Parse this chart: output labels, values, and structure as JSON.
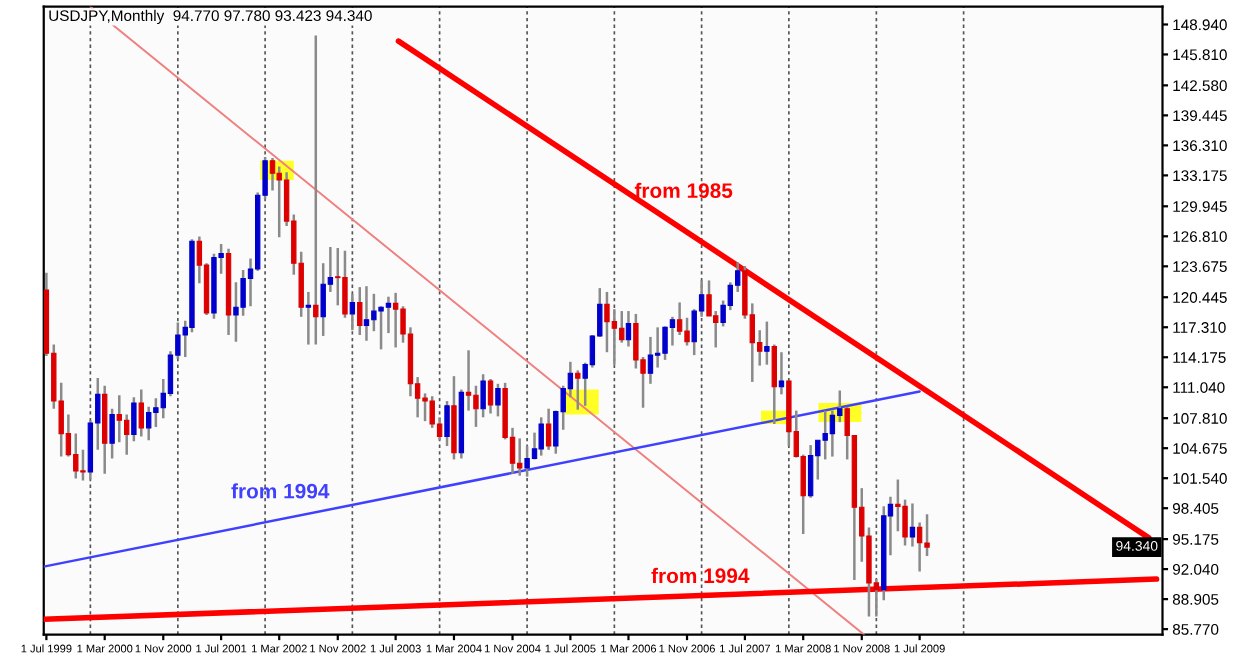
{
  "chart_data": {
    "type": "candlestick",
    "title": "USDJPY,Monthly  94.770 97.780 93.423 94.340",
    "x": [
      "1999-07",
      "1999-08",
      "1999-09",
      "1999-10",
      "1999-11",
      "1999-12",
      "2000-01",
      "2000-02",
      "2000-03",
      "2000-04",
      "2000-05",
      "2000-06",
      "2000-07",
      "2000-08",
      "2000-09",
      "2000-10",
      "2000-11",
      "2000-12",
      "2001-01",
      "2001-02",
      "2001-03",
      "2001-04",
      "2001-05",
      "2001-06",
      "2001-07",
      "2001-08",
      "2001-09",
      "2001-10",
      "2001-11",
      "2001-12",
      "2002-01",
      "2002-02",
      "2002-03",
      "2002-04",
      "2002-05",
      "2002-06",
      "2002-07",
      "2002-08",
      "2002-09",
      "2002-10",
      "2002-11",
      "2002-12",
      "2003-01",
      "2003-02",
      "2003-03",
      "2003-04",
      "2003-05",
      "2003-06",
      "2003-07",
      "2003-08",
      "2003-09",
      "2003-10",
      "2003-11",
      "2003-12",
      "2004-01",
      "2004-02",
      "2004-03",
      "2004-04",
      "2004-05",
      "2004-06",
      "2004-07",
      "2004-08",
      "2004-09",
      "2004-10",
      "2004-11",
      "2004-12",
      "2005-01",
      "2005-02",
      "2005-03",
      "2005-04",
      "2005-05",
      "2005-06",
      "2005-07",
      "2005-08",
      "2005-09",
      "2005-10",
      "2005-11",
      "2005-12",
      "2006-01",
      "2006-02",
      "2006-03",
      "2006-04",
      "2006-05",
      "2006-06",
      "2006-07",
      "2006-08",
      "2006-09",
      "2006-10",
      "2006-11",
      "2006-12",
      "2007-01",
      "2007-02",
      "2007-03",
      "2007-04",
      "2007-05",
      "2007-06",
      "2007-07",
      "2007-08",
      "2007-09",
      "2007-10",
      "2007-11",
      "2007-12",
      "2008-01",
      "2008-02",
      "2008-03",
      "2008-04",
      "2008-05",
      "2008-06",
      "2008-07",
      "2008-08",
      "2008-09",
      "2008-10",
      "2008-11",
      "2008-12",
      "2009-01",
      "2009-02",
      "2009-03",
      "2009-04",
      "2009-05",
      "2009-06",
      "2009-07",
      "2009-08"
    ],
    "ohlc": [
      [
        121.2,
        123.0,
        114.3,
        114.6
      ],
      [
        114.6,
        115.5,
        108.8,
        109.6
      ],
      [
        109.6,
        111.5,
        103.8,
        106.2
      ],
      [
        106.2,
        108.2,
        103.8,
        104.0
      ],
      [
        104.0,
        106.2,
        101.5,
        102.3
      ],
      [
        102.3,
        104.5,
        101.3,
        102.2
      ],
      [
        102.2,
        107.6,
        101.4,
        107.3
      ],
      [
        107.3,
        112.0,
        104.5,
        110.3
      ],
      [
        110.3,
        111.2,
        102.0,
        105.2
      ],
      [
        105.2,
        108.8,
        103.6,
        108.2
      ],
      [
        108.2,
        110.2,
        105.3,
        107.6
      ],
      [
        107.6,
        108.2,
        104.0,
        106.1
      ],
      [
        106.1,
        110.0,
        105.4,
        109.4
      ],
      [
        109.4,
        110.8,
        105.9,
        106.8
      ],
      [
        106.8,
        109.0,
        105.5,
        108.4
      ],
      [
        108.4,
        109.9,
        106.9,
        108.9
      ],
      [
        108.9,
        111.9,
        107.8,
        110.4
      ],
      [
        110.4,
        114.8,
        110.1,
        114.4
      ],
      [
        114.4,
        117.8,
        114.0,
        116.5
      ],
      [
        116.5,
        118.0,
        114.2,
        117.3
      ],
      [
        117.3,
        126.5,
        116.8,
        126.3
      ],
      [
        126.3,
        126.8,
        121.9,
        123.8
      ],
      [
        123.8,
        124.0,
        118.6,
        118.8
      ],
      [
        118.8,
        125.0,
        118.2,
        124.6
      ],
      [
        124.6,
        126.0,
        122.9,
        125.0
      ],
      [
        125.0,
        125.5,
        116.5,
        118.6
      ],
      [
        118.6,
        122.0,
        115.8,
        119.4
      ],
      [
        119.4,
        123.3,
        118.5,
        122.4
      ],
      [
        122.4,
        124.5,
        119.5,
        123.4
      ],
      [
        123.4,
        131.4,
        123.2,
        131.1
      ],
      [
        131.1,
        135.1,
        130.7,
        134.7
      ],
      [
        134.7,
        135.0,
        131.6,
        133.4
      ],
      [
        133.4,
        134.1,
        126.7,
        132.7
      ],
      [
        132.7,
        133.5,
        127.9,
        128.4
      ],
      [
        128.4,
        129.1,
        122.8,
        124.0
      ],
      [
        124.0,
        125.2,
        118.4,
        119.4
      ],
      [
        119.4,
        121.0,
        115.5,
        119.6
      ],
      [
        119.6,
        147.8,
        115.5,
        118.4
      ],
      [
        118.4,
        124.0,
        116.4,
        121.8
      ],
      [
        121.8,
        125.7,
        121.0,
        122.5
      ],
      [
        122.5,
        125.6,
        119.6,
        122.5
      ],
      [
        122.5,
        125.3,
        118.3,
        118.7
      ],
      [
        118.7,
        120.8,
        117.0,
        119.9
      ],
      [
        119.9,
        121.5,
        116.5,
        117.5
      ],
      [
        117.5,
        121.6,
        115.9,
        118.1
      ],
      [
        118.1,
        120.8,
        116.9,
        119.0
      ],
      [
        119.0,
        119.5,
        115.0,
        119.4
      ],
      [
        119.4,
        120.5,
        116.7,
        119.8
      ],
      [
        119.8,
        120.9,
        115.2,
        119.2
      ],
      [
        119.2,
        119.5,
        115.7,
        116.6
      ],
      [
        116.6,
        117.3,
        110.1,
        111.4
      ],
      [
        111.4,
        112.1,
        107.9,
        109.9
      ],
      [
        109.9,
        110.4,
        107.5,
        109.6
      ],
      [
        109.6,
        110.1,
        106.8,
        107.2
      ],
      [
        107.2,
        107.9,
        105.5,
        105.9
      ],
      [
        105.9,
        109.6,
        104.9,
        109.1
      ],
      [
        109.1,
        112.2,
        103.5,
        104.2
      ],
      [
        104.2,
        110.8,
        103.6,
        110.5
      ],
      [
        110.5,
        114.9,
        108.6,
        110.2
      ],
      [
        110.2,
        111.2,
        106.9,
        108.8
      ],
      [
        108.8,
        112.4,
        107.9,
        111.7
      ],
      [
        111.7,
        111.9,
        108.3,
        109.2
      ],
      [
        109.2,
        111.4,
        108.0,
        110.9
      ],
      [
        110.9,
        111.5,
        105.6,
        105.8
      ],
      [
        105.8,
        106.8,
        102.0,
        103.1
      ],
      [
        103.1,
        105.7,
        101.8,
        102.6
      ],
      [
        102.6,
        104.9,
        101.7,
        103.6
      ],
      [
        103.6,
        106.3,
        103.5,
        104.6
      ],
      [
        104.6,
        107.9,
        103.9,
        107.2
      ],
      [
        107.2,
        108.8,
        104.5,
        104.9
      ],
      [
        104.9,
        108.6,
        104.1,
        108.5
      ],
      [
        108.5,
        111.2,
        106.6,
        110.9
      ],
      [
        110.9,
        113.7,
        110.0,
        112.5
      ],
      [
        112.5,
        112.8,
        108.7,
        112.0
      ],
      [
        112.0,
        113.6,
        109.1,
        113.4
      ],
      [
        113.4,
        116.5,
        113.1,
        116.4
      ],
      [
        116.4,
        121.4,
        116.3,
        119.7
      ],
      [
        119.7,
        121.0,
        114.7,
        117.9
      ],
      [
        117.9,
        119.2,
        113.4,
        117.2
      ],
      [
        117.2,
        119.0,
        115.7,
        116.0
      ],
      [
        116.0,
        119.0,
        115.3,
        117.7
      ],
      [
        117.7,
        118.7,
        113.0,
        113.9
      ],
      [
        113.9,
        114.2,
        108.9,
        112.5
      ],
      [
        112.5,
        116.3,
        111.4,
        114.4
      ],
      [
        114.4,
        117.3,
        113.1,
        114.6
      ],
      [
        114.6,
        117.4,
        113.9,
        117.3
      ],
      [
        117.3,
        118.4,
        115.4,
        118.1
      ],
      [
        118.1,
        119.9,
        116.5,
        116.9
      ],
      [
        116.9,
        118.3,
        115.4,
        115.8
      ],
      [
        115.8,
        119.2,
        114.4,
        119.0
      ],
      [
        119.0,
        122.2,
        118.4,
        120.7
      ],
      [
        120.7,
        122.2,
        118.5,
        118.5
      ],
      [
        118.5,
        119.0,
        115.2,
        117.8
      ],
      [
        117.8,
        120.1,
        117.4,
        119.6
      ],
      [
        119.6,
        122.0,
        119.1,
        121.7
      ],
      [
        121.7,
        124.1,
        121.0,
        123.2
      ],
      [
        123.2,
        123.7,
        118.2,
        118.6
      ],
      [
        118.6,
        119.8,
        111.6,
        115.7
      ],
      [
        115.7,
        117.0,
        113.3,
        114.8
      ],
      [
        114.8,
        117.9,
        113.4,
        115.3
      ],
      [
        115.3,
        115.5,
        107.2,
        111.1
      ],
      [
        111.1,
        114.7,
        110.3,
        111.7
      ],
      [
        111.7,
        111.8,
        104.9,
        106.4
      ],
      [
        106.4,
        108.6,
        103.7,
        103.8
      ],
      [
        103.8,
        104.0,
        95.7,
        99.7
      ],
      [
        99.7,
        105.0,
        99.5,
        103.9
      ],
      [
        103.9,
        105.5,
        101.4,
        105.5
      ],
      [
        105.5,
        108.6,
        103.5,
        106.2
      ],
      [
        106.2,
        108.6,
        103.8,
        108.1
      ],
      [
        108.1,
        110.7,
        107.4,
        108.8
      ],
      [
        108.8,
        109.0,
        103.5,
        106.0
      ],
      [
        106.0,
        106.0,
        90.9,
        98.5
      ],
      [
        98.5,
        100.5,
        92.8,
        95.5
      ],
      [
        95.5,
        96.4,
        87.1,
        90.6
      ],
      [
        90.6,
        91.0,
        87.1,
        89.9
      ],
      [
        89.9,
        98.6,
        88.8,
        97.6
      ],
      [
        97.6,
        99.6,
        93.5,
        98.8
      ],
      [
        98.8,
        101.4,
        96.0,
        98.6
      ],
      [
        98.6,
        99.3,
        94.5,
        95.4
      ],
      [
        95.4,
        98.9,
        94.4,
        96.4
      ],
      [
        96.4,
        96.9,
        91.8,
        94.8
      ],
      [
        94.77,
        97.78,
        93.423,
        94.34
      ]
    ],
    "colors": [
      "#dd0000",
      "#dd0000",
      "#dd0000",
      "#dd0000",
      "#dd0000",
      "#dd0000",
      "#0000cc",
      "#0000cc",
      "#dd0000",
      "#0000cc",
      "#dd0000",
      "#dd0000",
      "#0000cc",
      "#dd0000",
      "#0000cc",
      "#0000cc",
      "#0000cc",
      "#0000cc",
      "#0000cc",
      "#0000cc",
      "#0000cc",
      "#dd0000",
      "#dd0000",
      "#0000cc",
      "#0000cc",
      "#dd0000",
      "#0000cc",
      "#0000cc",
      "#0000cc",
      "#0000cc",
      "#0000cc",
      "#dd0000",
      "#dd0000",
      "#dd0000",
      "#dd0000",
      "#dd0000",
      "#0000cc",
      "#dd0000",
      "#0000cc",
      "#0000cc",
      "#dd0000",
      "#dd0000",
      "#0000cc",
      "#dd0000",
      "#0000cc",
      "#0000cc",
      "#0000cc",
      "#0000cc",
      "#dd0000",
      "#dd0000",
      "#dd0000",
      "#dd0000",
      "#dd0000",
      "#dd0000",
      "#dd0000",
      "#0000cc",
      "#dd0000",
      "#0000cc",
      "#dd0000",
      "#dd0000",
      "#0000cc",
      "#dd0000",
      "#0000cc",
      "#dd0000",
      "#dd0000",
      "#dd0000",
      "#0000cc",
      "#0000cc",
      "#0000cc",
      "#dd0000",
      "#0000cc",
      "#0000cc",
      "#0000cc",
      "#dd0000",
      "#0000cc",
      "#0000cc",
      "#0000cc",
      "#dd0000",
      "#dd0000",
      "#dd0000",
      "#0000cc",
      "#dd0000",
      "#dd0000",
      "#0000cc",
      "#0000cc",
      "#0000cc",
      "#0000cc",
      "#dd0000",
      "#dd0000",
      "#0000cc",
      "#0000cc",
      "#dd0000",
      "#dd0000",
      "#0000cc",
      "#0000cc",
      "#0000cc",
      "#dd0000",
      "#dd0000",
      "#dd0000",
      "#0000cc",
      "#dd0000",
      "#0000cc",
      "#dd0000",
      "#dd0000",
      "#dd0000",
      "#0000cc",
      "#0000cc",
      "#0000cc",
      "#0000cc",
      "#0000cc",
      "#dd0000",
      "#dd0000",
      "#dd0000",
      "#dd0000",
      "#dd0000",
      "#0000cc",
      "#0000cc",
      "#dd0000",
      "#dd0000",
      "#0000cc",
      "#dd0000",
      "#dd0000"
    ],
    "series": [
      {
        "type": "line",
        "name": "from 1985",
        "color": "#ff0000",
        "x": [
          "2003-07-13",
          "2012-02-15"
        ],
        "values": [
          147.2,
          95.3
        ]
      },
      {
        "type": "line",
        "color": "#f08080",
        "x": [
          "2000-01-01",
          "2008-11-10"
        ],
        "values": [
          150.8,
          85.2
        ]
      },
      {
        "type": "line",
        "name": "from 1994",
        "color": "#4040ff",
        "x": [
          "1999-06-20",
          "2009-07-01"
        ],
        "values": [
          92.3,
          110.6
        ]
      },
      {
        "type": "line",
        "name": "from 1994",
        "color": "#ff0000",
        "x": [
          "1999-06-20",
          "2012-03-18"
        ],
        "values": [
          86.8,
          91.0
        ]
      }
    ],
    "xlim": [
      "1999-06-20",
      "2012-04-12"
    ],
    "xticks": [
      {
        "value": "1999-07-01",
        "label": "1 Jul 1999"
      },
      {
        "value": "2000-03-01",
        "label": "1 Mar 2000"
      },
      {
        "value": "2000-11-01",
        "label": "1 Nov 2000"
      },
      {
        "value": "2001-07-01",
        "label": "1 Jul 2001"
      },
      {
        "value": "2002-03-01",
        "label": "1 Mar 2002"
      },
      {
        "value": "2002-11-01",
        "label": "1 Nov 2002"
      },
      {
        "value": "2003-07-01",
        "label": "1 Jul 2003"
      },
      {
        "value": "2004-03-01",
        "label": "1 Mar 2004"
      },
      {
        "value": "2004-11-01",
        "label": "1 Nov 2004"
      },
      {
        "value": "2005-07-01",
        "label": "1 Jul 2005"
      },
      {
        "value": "2006-03-01",
        "label": "1 Mar 2006"
      },
      {
        "value": "2006-11-01",
        "label": "1 Nov 2006"
      },
      {
        "value": "2007-07-01",
        "label": "1 Jul 2007"
      },
      {
        "value": "2008-03-01",
        "label": "1 Mar 2008"
      },
      {
        "value": "2008-11-01",
        "label": "1 Nov 2008"
      },
      {
        "value": "2009-07-01",
        "label": "1 Jul 2009"
      },
      {
        "value": "2000-01-01",
        "label": null
      },
      {
        "value": "2001-01-01",
        "label": null
      },
      {
        "value": "2002-01-01",
        "label": null
      },
      {
        "value": "2003-01-01",
        "label": null
      },
      {
        "value": "2004-01-01",
        "label": null
      },
      {
        "value": "2005-01-01",
        "label": null
      },
      {
        "value": "2006-01-01",
        "label": null
      },
      {
        "value": "2007-01-01",
        "label": null
      },
      {
        "value": "2008-01-01",
        "label": null
      },
      {
        "value": "2009-01-01",
        "label": null
      },
      {
        "value": "2010-01-01",
        "label": null
      }
    ],
    "ylim": [
      85.2,
      150.8
    ],
    "yticks": [
      {
        "value": 148.94,
        "label": "148.940"
      },
      {
        "value": 145.81,
        "label": "145.810"
      },
      {
        "value": 142.58,
        "label": "142.580"
      },
      {
        "value": 139.445,
        "label": "139.445"
      },
      {
        "value": 136.31,
        "label": "136.310"
      },
      {
        "value": 133.175,
        "label": "133.175"
      },
      {
        "value": 129.945,
        "label": "129.945"
      },
      {
        "value": 126.81,
        "label": "126.810"
      },
      {
        "value": 123.675,
        "label": "123.675"
      },
      {
        "value": 120.445,
        "label": "120.445"
      },
      {
        "value": 117.31,
        "label": "117.310"
      },
      {
        "value": 114.175,
        "label": "114.175"
      },
      {
        "value": 111.04,
        "label": "111.040"
      },
      {
        "value": 107.81,
        "label": "107.810"
      },
      {
        "value": 104.675,
        "label": "104.675"
      },
      {
        "value": 101.54,
        "label": "101.540"
      },
      {
        "value": 98.405,
        "label": "98.405"
      },
      {
        "value": 95.175,
        "label": "95.175"
      },
      {
        "value": 92.04,
        "label": "92.040"
      },
      {
        "value": 88.905,
        "label": "88.905"
      },
      {
        "value": 85.77,
        "label": "85.770"
      }
    ],
    "annotations": [
      {
        "text": "94.340",
        "y": 94.34
      }
    ],
    "grid": "x",
    "legend": false
  }
}
